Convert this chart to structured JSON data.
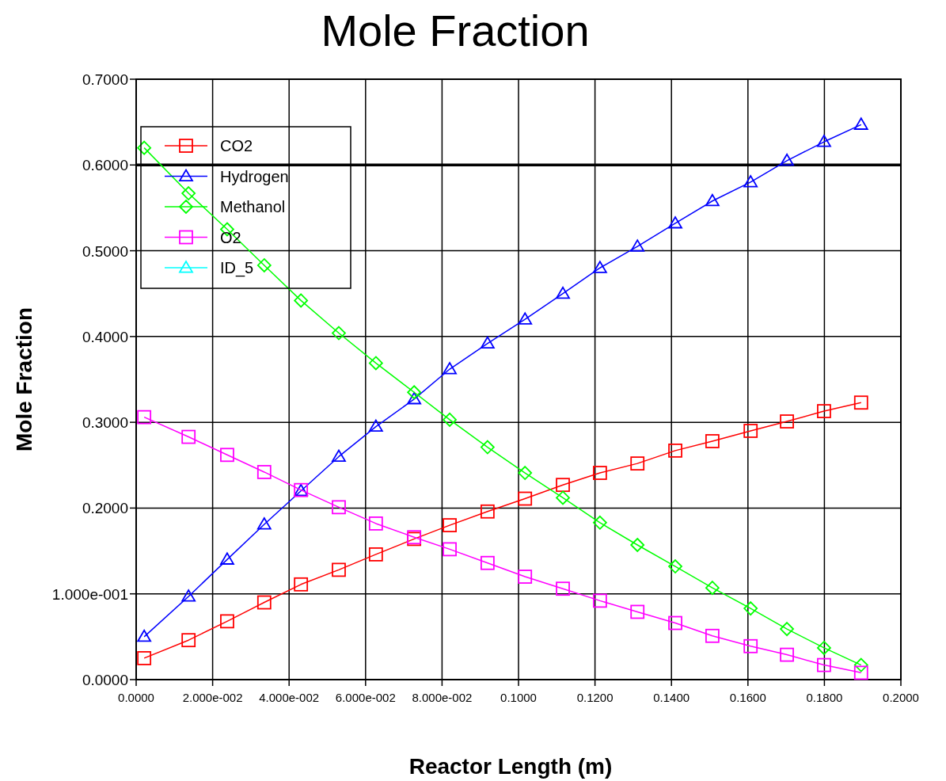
{
  "chart_data": {
    "type": "line",
    "title": "Mole Fraction",
    "xlabel": "Reactor Length (m)",
    "ylabel": "Mole Fraction",
    "x": [
      0.0021,
      0.0137,
      0.0238,
      0.0335,
      0.0431,
      0.053,
      0.0627,
      0.0727,
      0.082,
      0.0919,
      0.1017,
      0.1116,
      0.1213,
      0.1311,
      0.141,
      0.1507,
      0.1607,
      0.1702,
      0.1799,
      0.1896
    ],
    "series": [
      {
        "name": "CO2",
        "color": "#ff0000",
        "marker": "square",
        "values": [
          0.025,
          0.046,
          0.068,
          0.09,
          0.111,
          0.128,
          0.146,
          0.164,
          0.18,
          0.196,
          0.211,
          0.227,
          0.241,
          0.252,
          0.267,
          0.278,
          0.29,
          0.301,
          0.313,
          0.323
        ]
      },
      {
        "name": "Hydrogen",
        "color": "#0000ff",
        "marker": "triangle",
        "values": [
          0.05,
          0.097,
          0.14,
          0.181,
          0.22,
          0.26,
          0.295,
          0.327,
          0.362,
          0.392,
          0.42,
          0.45,
          0.48,
          0.505,
          0.532,
          0.558,
          0.58,
          0.605,
          0.627,
          0.647
        ]
      },
      {
        "name": "Methanol",
        "color": "#00ff00",
        "marker": "diamond",
        "values": [
          0.62,
          0.567,
          0.525,
          0.483,
          0.442,
          0.404,
          0.369,
          0.335,
          0.303,
          0.271,
          0.241,
          0.212,
          0.183,
          0.157,
          0.132,
          0.107,
          0.083,
          0.059,
          0.037,
          0.017
        ]
      },
      {
        "name": "O2",
        "color": "#ff00ff",
        "marker": "square",
        "values": [
          0.306,
          0.283,
          0.262,
          0.242,
          0.221,
          0.201,
          0.182,
          0.166,
          0.152,
          0.136,
          0.12,
          0.106,
          0.092,
          0.079,
          0.066,
          0.051,
          0.039,
          0.029,
          0.017,
          0.008
        ]
      },
      {
        "name": "ID_5",
        "color": "#00ffff",
        "marker": "triangle",
        "values": [
          null,
          null,
          null,
          null,
          null,
          null,
          null,
          null,
          null,
          null,
          null,
          null,
          null,
          null,
          null,
          null,
          null,
          null,
          null,
          null
        ]
      }
    ],
    "xlim": [
      0,
      0.2
    ],
    "xticks": [
      {
        "value": 0,
        "label": "0.0000"
      },
      {
        "value": 0.02,
        "label": "2.000e-002"
      },
      {
        "value": 0.04,
        "label": "4.000e-002"
      },
      {
        "value": 0.06,
        "label": "6.000e-002"
      },
      {
        "value": 0.08,
        "label": "8.000e-002"
      },
      {
        "value": 0.1,
        "label": "0.1000"
      },
      {
        "value": 0.12,
        "label": "0.1200"
      },
      {
        "value": 0.14,
        "label": "0.1400"
      },
      {
        "value": 0.16,
        "label": "0.1600"
      },
      {
        "value": 0.18,
        "label": "0.1800"
      },
      {
        "value": 0.2,
        "label": "0.2000"
      }
    ],
    "ylim": [
      0,
      0.7
    ],
    "yticks": [
      {
        "value": 0,
        "label": "0.0000"
      },
      {
        "value": 0.1,
        "label": "1.000e-001"
      },
      {
        "value": 0.2,
        "label": "0.2000"
      },
      {
        "value": 0.3,
        "label": "0.3000"
      },
      {
        "value": 0.4,
        "label": "0.4000"
      },
      {
        "value": 0.5,
        "label": "0.5000"
      },
      {
        "value": 0.6,
        "label": "0.6000"
      },
      {
        "value": 0.7,
        "label": "0.7000"
      }
    ],
    "ref_lines": [
      {
        "axis": "y",
        "value": 0.6,
        "color": "#000000"
      }
    ],
    "grid": true,
    "legend": "top left"
  }
}
